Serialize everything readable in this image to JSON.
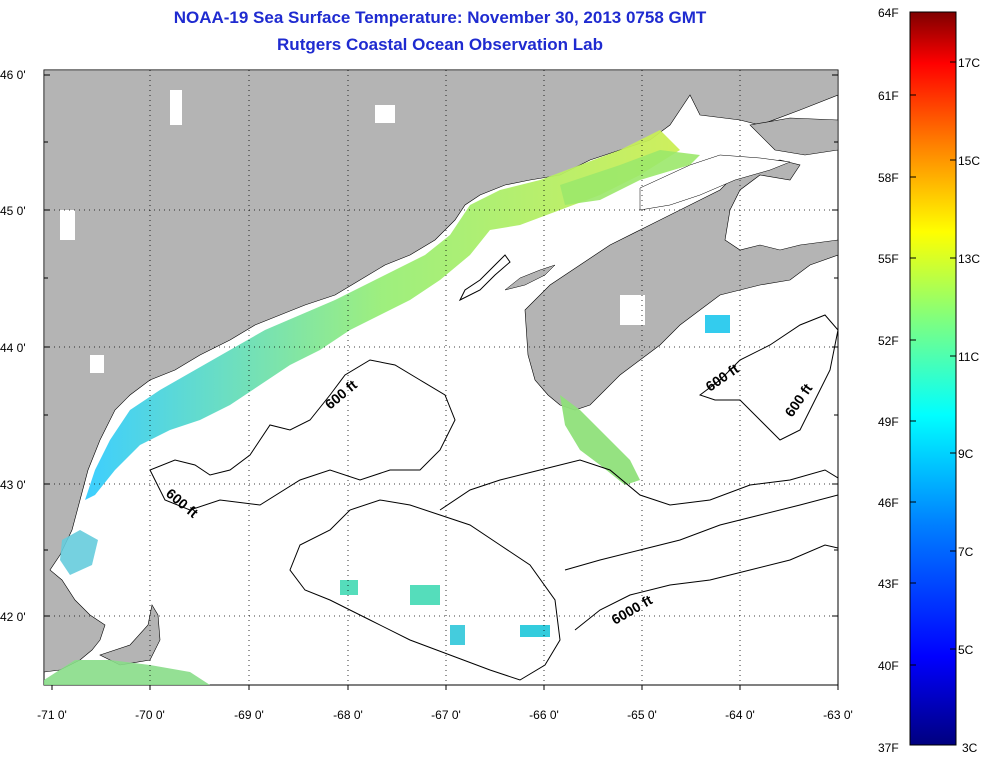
{
  "header": {
    "title": "NOAA-19 Sea Surface Temperature:  November 30, 2013 0758 GMT",
    "subtitle": "Rutgers Coastal Ocean Observation Lab"
  },
  "map": {
    "lat_labels": [
      "46 0'",
      "45 0'",
      "44 0'",
      "43 0'",
      "42 0'"
    ],
    "lon_labels": [
      "-71 0'",
      "-70 0'",
      "-69 0'",
      "-68 0'",
      "-67 0'",
      "-66 0'",
      "-65 0'",
      "-64 0'",
      "-63 0'"
    ],
    "lat_range": [
      41.5,
      46.0
    ],
    "lon_range": [
      -71,
      -63
    ],
    "contour_labels": [
      "600 ft",
      "600 ft",
      "600 ft",
      "600 ft",
      "6000 ft"
    ],
    "land_color": "#b4b4b4",
    "ocean_color": "#ffffff"
  },
  "colorbar": {
    "fahrenheit_labels": [
      "64F",
      "61F",
      "58F",
      "55F",
      "52F",
      "49F",
      "46F",
      "43F",
      "40F",
      "37F"
    ],
    "celsius_labels": [
      "17C",
      "15C",
      "13C",
      "11C",
      "9C",
      "7C",
      "5C",
      "3C"
    ],
    "min_f": 37,
    "max_f": 64,
    "colors": [
      "#00007f",
      "#0000ff",
      "#007fff",
      "#00ffff",
      "#7fff7f",
      "#ffff00",
      "#ff7f00",
      "#ff0000",
      "#7f0000"
    ]
  }
}
